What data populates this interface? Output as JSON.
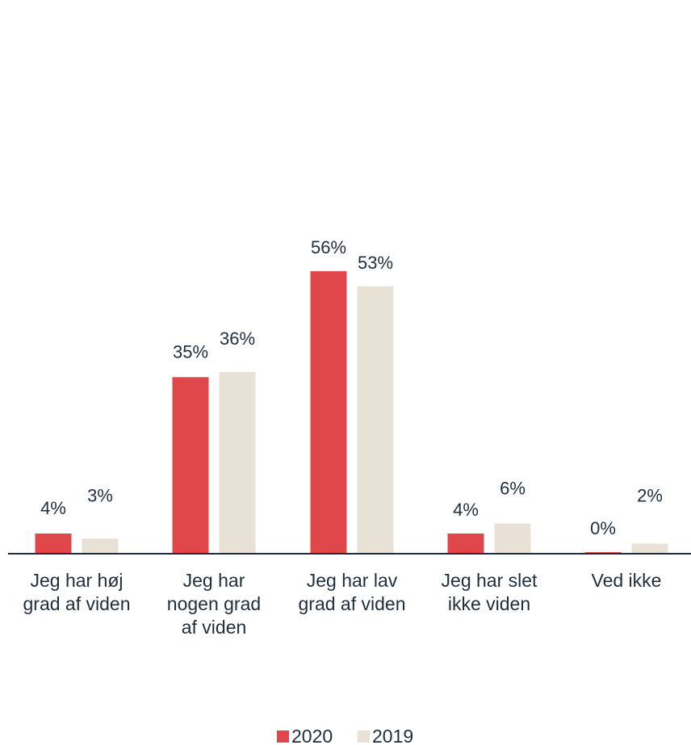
{
  "chart_data": {
    "type": "bar",
    "title": "",
    "xlabel": "",
    "ylabel": "",
    "ylim": [
      0,
      60
    ],
    "grid": false,
    "legend_position": "bottom-center",
    "categories": [
      [
        "Jeg har høj",
        "grad af viden"
      ],
      [
        "Jeg har",
        "nogen grad",
        "af viden"
      ],
      [
        "Jeg har lav",
        "grad af viden"
      ],
      [
        "Jeg har slet",
        "ikke viden"
      ],
      [
        "Ved ikke"
      ]
    ],
    "series": [
      {
        "name": "2020",
        "color": "#e0474a",
        "values": [
          4,
          35,
          56,
          4,
          0.3
        ],
        "labels": [
          "4%",
          "35%",
          "56%",
          "4%",
          "0%"
        ]
      },
      {
        "name": "2019",
        "color": "#e8e1d6",
        "values": [
          3,
          36,
          53,
          6,
          2
        ],
        "labels": [
          "3%",
          "36%",
          "53%",
          "6%",
          "2%"
        ]
      }
    ]
  }
}
